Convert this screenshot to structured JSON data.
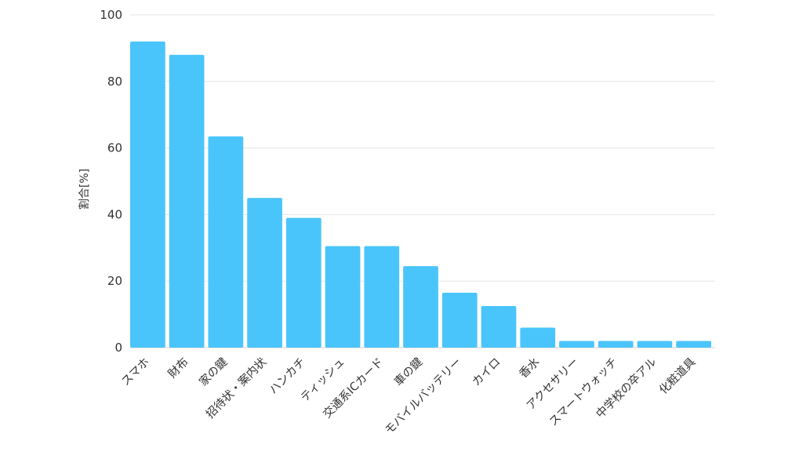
{
  "chart_data": {
    "type": "bar",
    "categories": [
      "スマホ",
      "財布",
      "家の鍵",
      "招待状・案内状",
      "ハンカチ",
      "ティッシュ",
      "交通系ICカード",
      "車の鍵",
      "モバイルバッテリー",
      "カイロ",
      "香水",
      "アクセサリー",
      "スマートウォッチ",
      "中学校の卒アル",
      "化粧道具"
    ],
    "values": [
      92,
      88,
      63.5,
      45,
      39,
      30.5,
      30.5,
      24.5,
      16.5,
      12.5,
      6,
      2,
      2,
      2,
      2
    ],
    "title": "",
    "xlabel": "",
    "ylabel": "割合[%]",
    "ylim": [
      0,
      100
    ],
    "yticks": [
      0,
      20,
      40,
      60,
      80,
      100
    ],
    "grid": true,
    "legend": "none",
    "bar_color": "#4ac5fb"
  }
}
